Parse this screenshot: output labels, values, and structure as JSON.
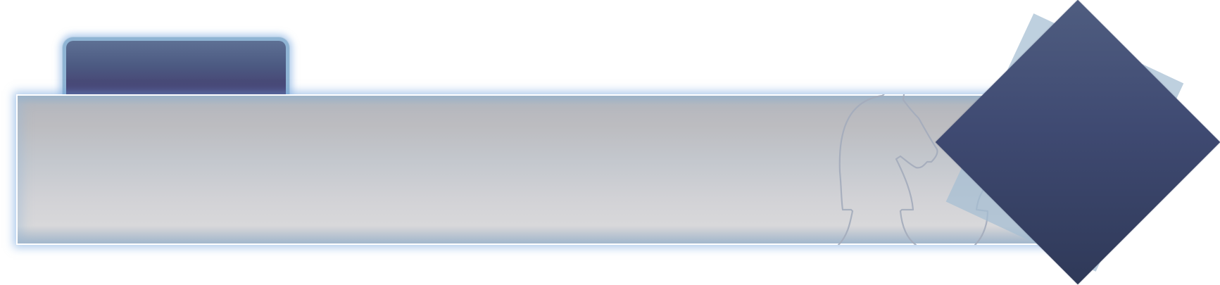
{
  "theme": {
    "panel_glow": "#6ea0dc",
    "tab_top": "#5e7094",
    "tab_bottom": "#453c6e",
    "diamond_top": "#4f5d80",
    "diamond_bottom": "#2f3958",
    "back_card": "#a5bed2"
  },
  "decorations": {
    "horse": "chess-knight-silhouette",
    "diamond": "diamond-emblem",
    "card": "tilted-card"
  }
}
